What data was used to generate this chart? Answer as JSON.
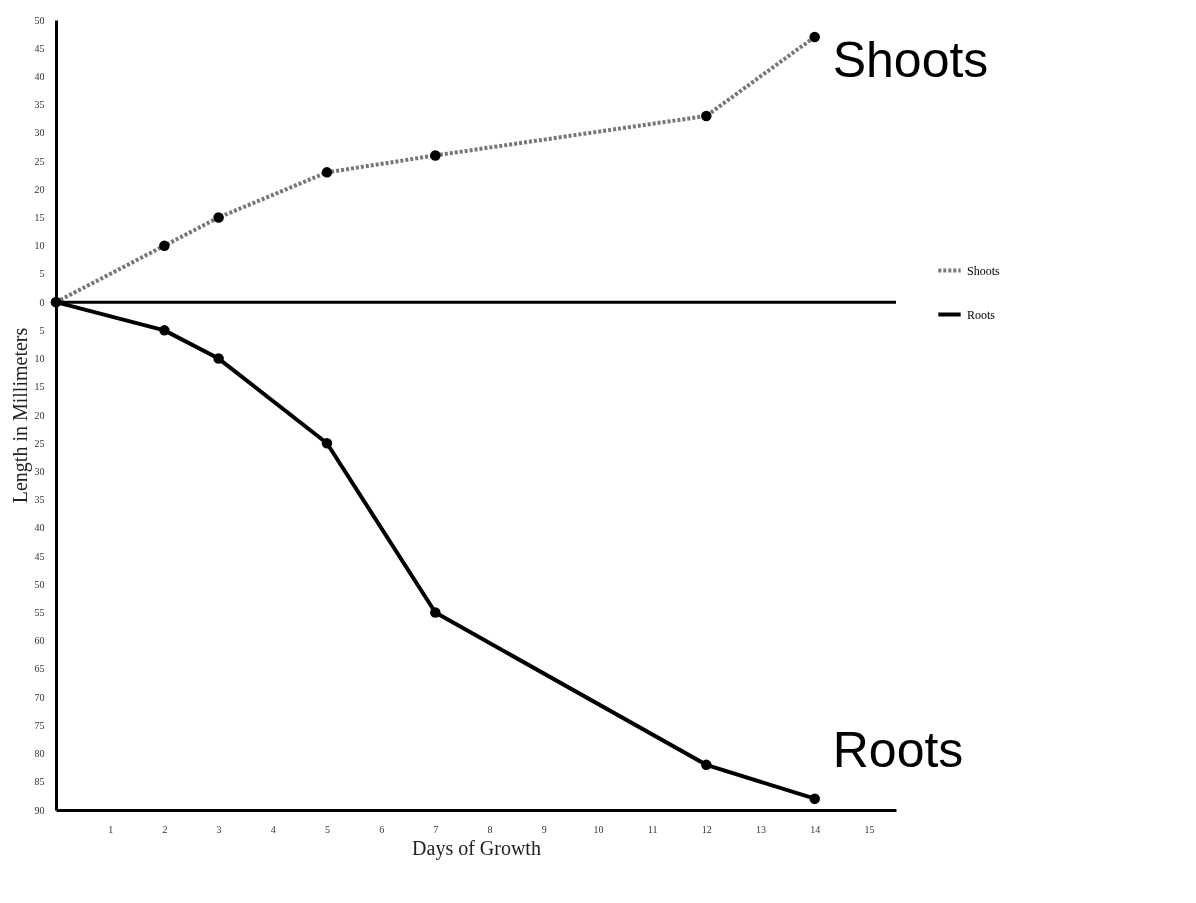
{
  "chart_data": {
    "type": "line",
    "xlabel": "Days of Growth",
    "ylabel": "Length in Millimeters",
    "x": [
      0,
      2,
      3,
      5,
      7,
      12,
      14
    ],
    "series": [
      {
        "name": "Shoots",
        "color": "#777777",
        "line_style": "dotted",
        "values": [
          0,
          10,
          15,
          23,
          26,
          33,
          47
        ]
      },
      {
        "name": "Roots",
        "color": "#000000",
        "line_style": "solid",
        "values": [
          0,
          -5,
          -10,
          -25,
          -55,
          -82,
          -88
        ]
      }
    ],
    "xlim": [
      0,
      15.5
    ],
    "xticks": [
      1,
      2,
      3,
      4,
      5,
      6,
      7,
      8,
      9,
      10,
      11,
      12,
      13,
      14,
      15
    ],
    "ylim": [
      -90,
      50
    ],
    "yticks": [
      50,
      45,
      40,
      35,
      30,
      25,
      20,
      15,
      10,
      5,
      0,
      {
        "value": -5,
        "label": "5"
      },
      {
        "value": -10,
        "label": "10"
      },
      {
        "value": -15,
        "label": "15"
      },
      {
        "value": -20,
        "label": "20"
      },
      {
        "value": -25,
        "label": "25"
      },
      {
        "value": -30,
        "label": "30"
      },
      {
        "value": -35,
        "label": "35"
      },
      {
        "value": -40,
        "label": "40"
      },
      {
        "value": -45,
        "label": "45"
      },
      {
        "value": -50,
        "label": "50"
      },
      {
        "value": -55,
        "label": "55"
      },
      {
        "value": -60,
        "label": "60"
      },
      {
        "value": -65,
        "label": "65"
      },
      {
        "value": -70,
        "label": "70"
      },
      {
        "value": -75,
        "label": "75"
      },
      {
        "value": -80,
        "label": "80"
      },
      {
        "value": -85,
        "label": "85"
      },
      {
        "value": -90,
        "label": "90"
      }
    ],
    "ref_lines": [
      {
        "axis": "y",
        "value": 0,
        "color": "#000000"
      }
    ],
    "annotations": [
      "Shoots",
      "Roots"
    ],
    "marker": "circle",
    "grid": false,
    "legend": "right"
  }
}
